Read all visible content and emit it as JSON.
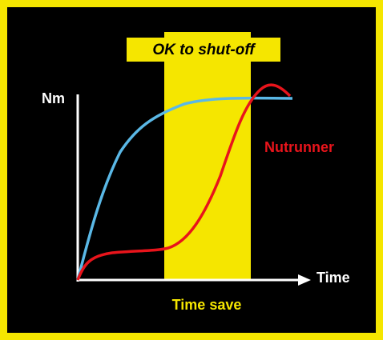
{
  "banner": {
    "label": "OK to shut-off"
  },
  "axes": {
    "y_label": "Nm",
    "x_label": "Time"
  },
  "curves": {
    "red_label": "Nutrunner"
  },
  "band": {
    "label": "Time save"
  }
}
